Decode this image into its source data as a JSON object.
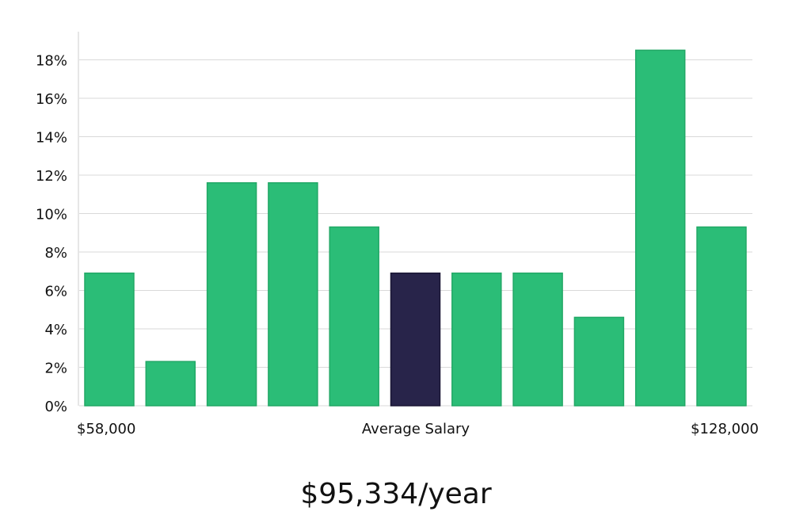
{
  "chart_data": {
    "type": "bar",
    "values": [
      6.9,
      2.3,
      11.6,
      11.6,
      9.3,
      6.9,
      6.9,
      6.9,
      4.6,
      18.5,
      9.3
    ],
    "highlight_index": 5,
    "y_ticks": [
      "0%",
      "2%",
      "4%",
      "6%",
      "8%",
      "10%",
      "12%",
      "14%",
      "16%",
      "18%"
    ],
    "ylim": [
      0,
      19
    ],
    "grid": true,
    "x_labels": {
      "left": "$58,000",
      "center": "Average Salary",
      "right": "$128,000"
    },
    "colors": {
      "bar": "#2bbd77",
      "bar_edge": "#22a866",
      "highlight": "#28244a",
      "highlight_edge": "#1a1735"
    }
  },
  "salary_text": "$95,334/year"
}
